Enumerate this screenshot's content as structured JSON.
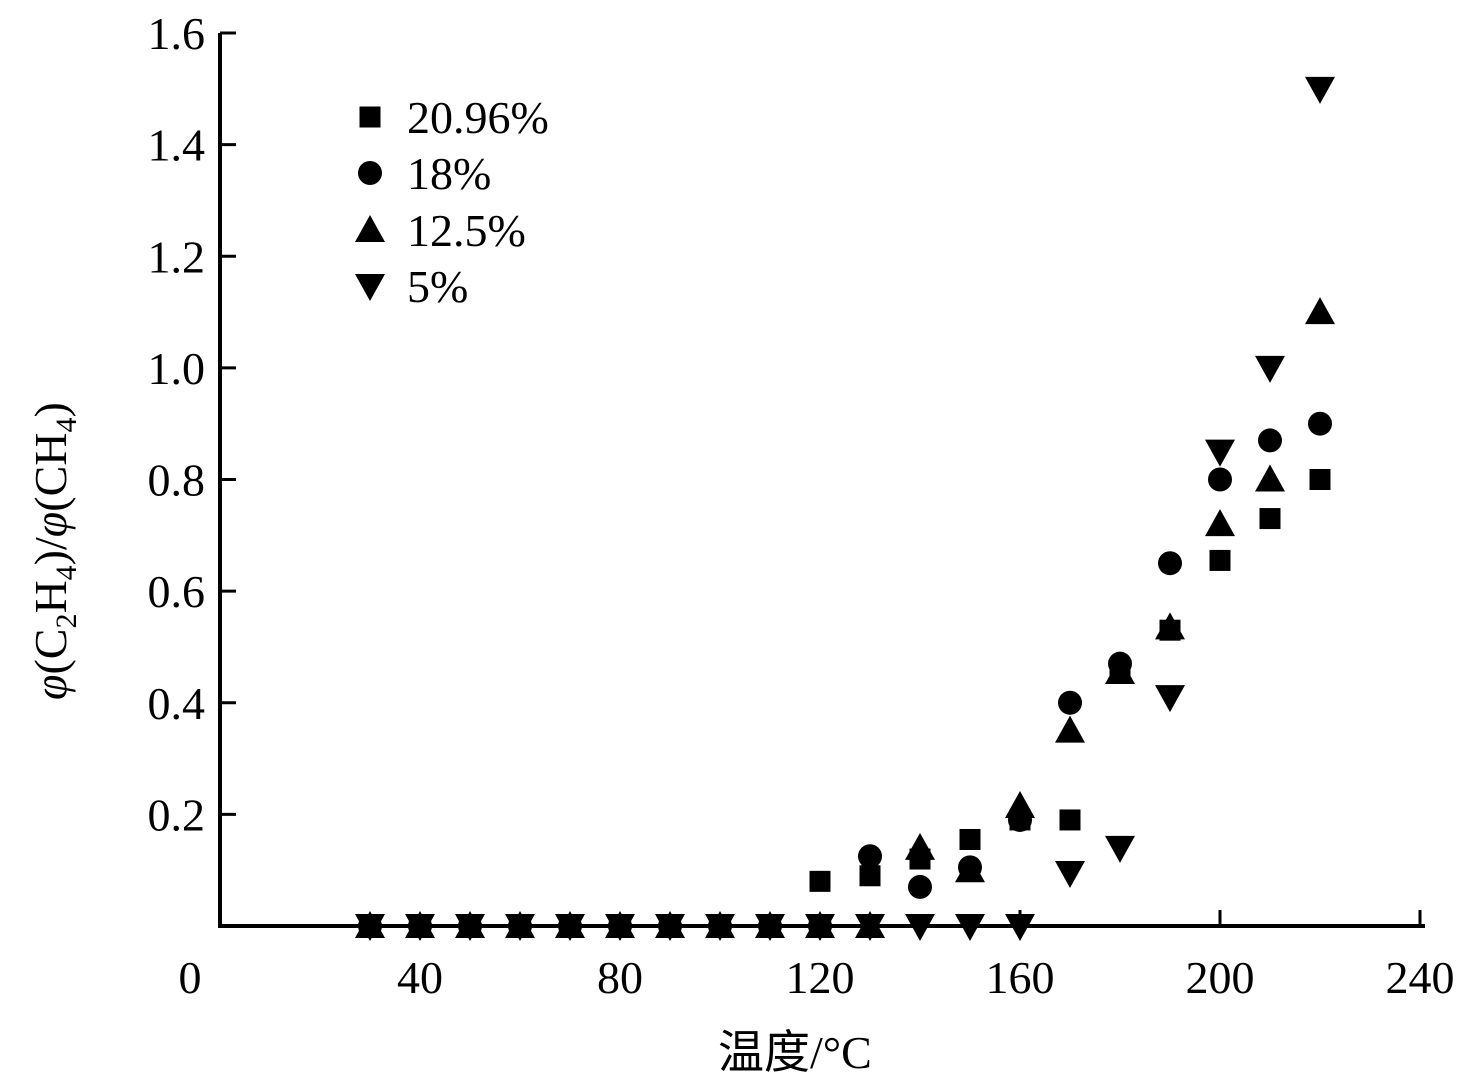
{
  "chart_data": {
    "type": "scatter",
    "title": "",
    "xlabel": "温度/°C",
    "ylabel": "φ(C2H4)/φ(CH4)",
    "xlim": [
      0,
      240
    ],
    "ylim": [
      0,
      1.6
    ],
    "xticks": [
      0,
      40,
      80,
      120,
      160,
      200,
      240
    ],
    "yticks": [
      0.2,
      0.4,
      0.6,
      0.8,
      1.0,
      1.2,
      1.4,
      1.6
    ],
    "xtick_labels": [
      "0",
      "40",
      "80",
      "120",
      "160",
      "200",
      "240"
    ],
    "ytick_labels": [
      "0.2",
      "0.4",
      "0.6",
      "0.8",
      "1.0",
      "1.2",
      "1.4",
      "1.6"
    ],
    "grid": false,
    "legend_position": "upper left",
    "x": [
      30,
      40,
      50,
      60,
      70,
      80,
      90,
      100,
      110,
      120,
      130,
      140,
      150,
      160,
      170,
      180,
      190,
      200,
      210,
      220
    ],
    "series": [
      {
        "name": "20.96%",
        "marker": "square",
        "values": [
          0,
          0,
          0,
          0,
          0,
          0,
          0,
          0,
          0,
          0.08,
          0.09,
          0.12,
          0.155,
          0.19,
          0.19,
          0.455,
          0.53,
          0.655,
          0.73,
          0.8
        ]
      },
      {
        "name": "18%",
        "marker": "circle",
        "values": [
          0,
          0,
          0,
          0,
          0,
          0,
          0,
          0,
          0,
          0,
          0.125,
          0.07,
          0.105,
          0.19,
          0.4,
          0.47,
          0.65,
          0.8,
          0.87,
          0.9
        ]
      },
      {
        "name": "12.5%",
        "marker": "triangle-up",
        "values": [
          0,
          0,
          0,
          0,
          0,
          0,
          0,
          0,
          0,
          0,
          0,
          0.14,
          0.1,
          0.215,
          0.35,
          0.455,
          0.535,
          0.72,
          0.8,
          1.1
        ]
      },
      {
        "name": "5%",
        "marker": "triangle-down",
        "values": [
          0,
          0,
          0,
          0,
          0,
          0,
          0,
          0,
          0,
          0,
          0,
          0,
          0,
          0,
          0.095,
          0.14,
          0.41,
          0.85,
          1.0,
          1.5
        ]
      }
    ]
  },
  "axes": {
    "x_title_main": "温度/",
    "x_title_unit": "°C",
    "y_title": {
      "phi1": "φ",
      "open1": "(C",
      "sub2": "2",
      "h1": "H",
      "sub4a": "4",
      "close1": ")/",
      "phi2": "φ",
      "open2": "(CH",
      "sub4b": "4",
      "close2": ")"
    }
  },
  "legend": {
    "items": [
      {
        "label": "20.96%",
        "marker": "square"
      },
      {
        "label": "18%",
        "marker": "circle"
      },
      {
        "label": "12.5%",
        "marker": "triangle-up"
      },
      {
        "label": "5%",
        "marker": "triangle-down"
      }
    ]
  },
  "colors": {
    "marker": "#000000",
    "axis": "#000000",
    "background": "#ffffff"
  }
}
